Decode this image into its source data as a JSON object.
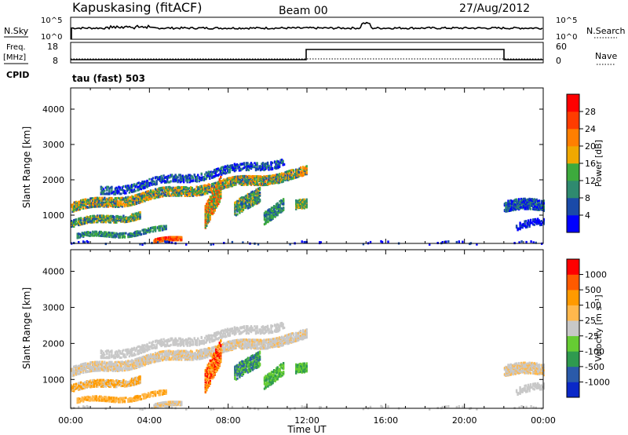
{
  "header": {
    "site": "Kapuskasing (fitACF)",
    "beam": "Beam 00",
    "date": "27/Aug/2012"
  },
  "top_panels": {
    "nsky_label": "N.Sky",
    "nsky_ticks": [
      "10^5",
      "10^0"
    ],
    "nsearch_label": "N.Search",
    "nsearch_ticks": [
      "10^5",
      "10^0"
    ],
    "freq_label_1": "Freq.",
    "freq_label_2": "[MHz]",
    "freq_ticks": [
      "18",
      "8"
    ],
    "nave_label": "Nave",
    "nave_ticks": [
      "60",
      "0"
    ],
    "cpid_label": "CPID",
    "cpid_value": "tau (fast) 503"
  },
  "colors": {
    "power": [
      "#0000ff",
      "#1a4aa8",
      "#2f8a6f",
      "#3daa3d",
      "#f0a800",
      "#ff7f00",
      "#ff3c00",
      "#ff0000"
    ],
    "velocity": [
      "#ff0000",
      "#ff5a00",
      "#ff9a00",
      "#ffb84d",
      "#c8c8c8",
      "#66cc33",
      "#2f9a4f",
      "#2a5aaa",
      "#0a28c8"
    ]
  },
  "chart_data": [
    {
      "type": "heatmap",
      "name": "power",
      "ylabel": "Slant Range [km]",
      "yticks": [
        "1000",
        "2000",
        "3000",
        "4000"
      ],
      "ylim": [
        200,
        4600
      ],
      "xlim": [
        0,
        24
      ],
      "colorbar_label": "Power [dB]",
      "colorbar_ticks": [
        "4",
        "8",
        "12",
        "16",
        "20",
        "24",
        "28"
      ]
    },
    {
      "type": "heatmap",
      "name": "velocity",
      "ylabel": "Slant Range [km]",
      "yticks": [
        "1000",
        "2000",
        "3000",
        "4000"
      ],
      "ylim": [
        200,
        4600
      ],
      "xlim": [
        0,
        24
      ],
      "colorbar_label": "Velocity [m s⁻¹]",
      "colorbar_ticks": [
        "1000",
        "500",
        "100",
        "25",
        "-25",
        "-100",
        "-500",
        "-1000"
      ],
      "xlabel": "Time UT",
      "xticks": [
        "00:00",
        "04:00",
        "08:00",
        "12:00",
        "16:00",
        "20:00",
        "00:00"
      ]
    }
  ]
}
